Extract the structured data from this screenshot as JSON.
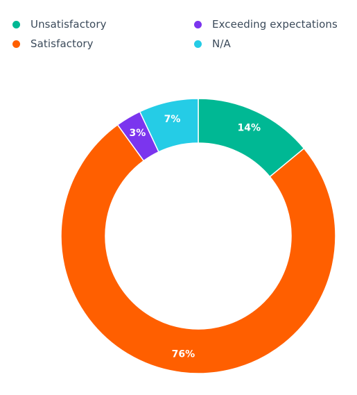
{
  "chart_data": {
    "type": "pie",
    "donut": true,
    "title": "",
    "legend_position": "top",
    "categories": [
      "Unsatisfactory",
      "Exceeding expectations",
      "Satisfactory",
      "N/A"
    ],
    "series": [
      {
        "values": [
          14,
          3,
          76,
          7
        ]
      }
    ],
    "slice_order": [
      "Unsatisfactory",
      "Satisfactory",
      "Exceeding expectations",
      "N/A"
    ],
    "slice_values": [
      14,
      76,
      3,
      7
    ],
    "data_labels": [
      "14%",
      "76%",
      "3%",
      "7%"
    ],
    "colors": {
      "Unsatisfactory": "#00b894",
      "Satisfactory": "#ff5f00",
      "Exceeding expectations": "#7b35ee",
      "N/A": "#25cce6"
    }
  },
  "legend": {
    "items": [
      {
        "label": "Unsatisfactory",
        "color": "#00b894"
      },
      {
        "label": "Exceeding expectations",
        "color": "#7b35ee"
      },
      {
        "label": "Satisfactory",
        "color": "#ff5f00"
      },
      {
        "label": "N/A",
        "color": "#25cce6"
      }
    ]
  }
}
